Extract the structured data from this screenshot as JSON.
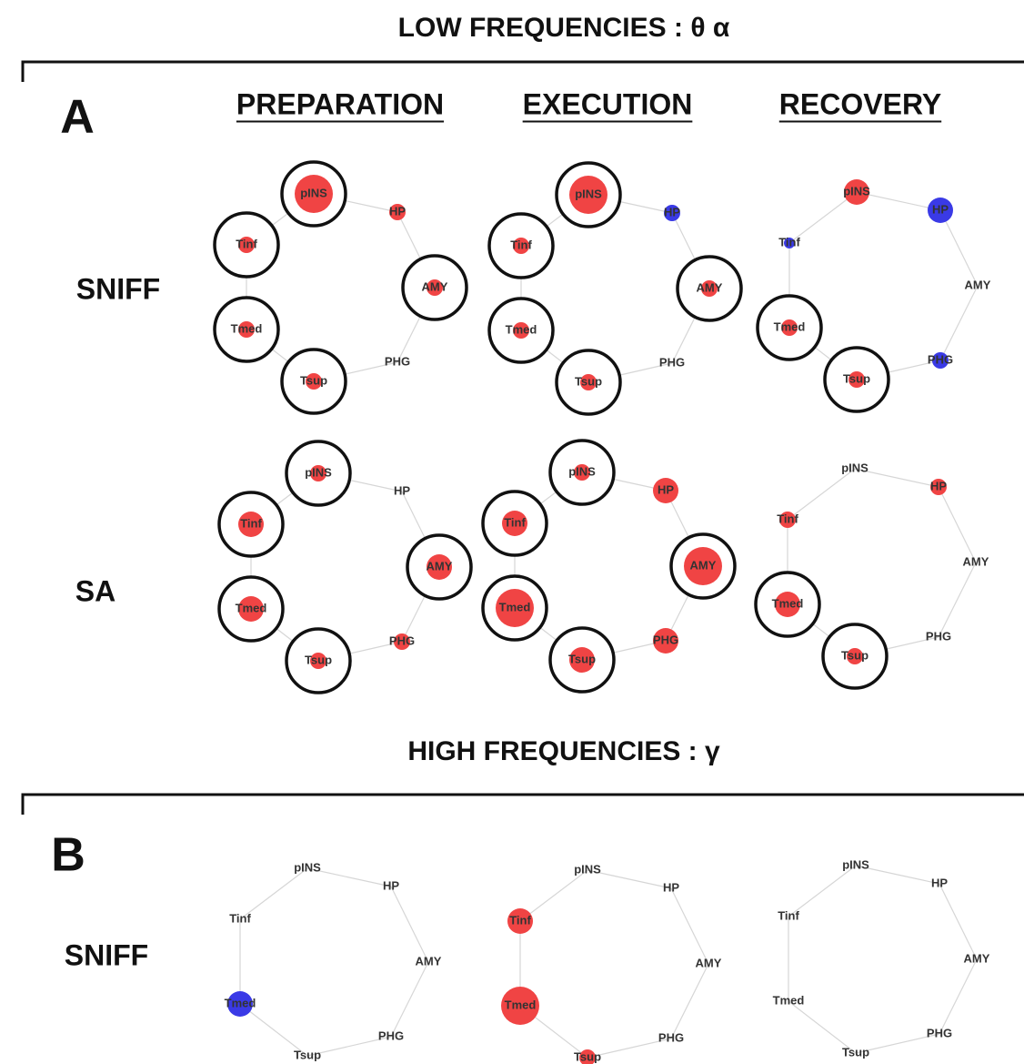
{
  "sections": [
    {
      "title": "LOW FREQUENCIES : θ α",
      "letter": "A",
      "columns": [
        "PREPARATION",
        "EXECUTION",
        "RECOVERY"
      ],
      "rows": [
        {
          "label": "SNIFF",
          "graphs": [
            {
              "nodes": [
                {
                  "label": "pINS",
                  "color": "red",
                  "size": "large",
                  "ring": true
                },
                {
                  "label": "HP",
                  "color": "red",
                  "size": "small"
                },
                {
                  "label": "AMY",
                  "color": "red",
                  "size": "small",
                  "ring": true
                },
                {
                  "label": "PHG"
                },
                {
                  "label": "Tsup",
                  "color": "red",
                  "size": "small",
                  "ring": true
                },
                {
                  "label": "Tmed",
                  "color": "red",
                  "size": "small",
                  "ring": true
                },
                {
                  "label": "Tinf",
                  "color": "red",
                  "size": "small",
                  "ring": true
                }
              ]
            },
            {
              "nodes": [
                {
                  "label": "pINS",
                  "color": "red",
                  "size": "large",
                  "ring": true
                },
                {
                  "label": "HP",
                  "color": "blue",
                  "size": "small"
                },
                {
                  "label": "AMY",
                  "color": "red",
                  "size": "small",
                  "ring": true
                },
                {
                  "label": "PHG"
                },
                {
                  "label": "Tsup",
                  "color": "red",
                  "size": "small",
                  "ring": true
                },
                {
                  "label": "Tmed",
                  "color": "red",
                  "size": "small",
                  "ring": true
                },
                {
                  "label": "Tinf",
                  "color": "red",
                  "size": "small",
                  "ring": true
                }
              ]
            },
            {
              "nodes": [
                {
                  "label": "pINS",
                  "color": "red",
                  "size": "medium"
                },
                {
                  "label": "HP",
                  "color": "blue",
                  "size": "medium"
                },
                {
                  "label": "AMY"
                },
                {
                  "label": "PHG",
                  "color": "blue",
                  "size": "small"
                },
                {
                  "label": "Tsup",
                  "color": "red",
                  "size": "small",
                  "ring": true
                },
                {
                  "label": "Tmed",
                  "color": "red",
                  "size": "small",
                  "ring": true
                },
                {
                  "label": "Tinf",
                  "color": "blue",
                  "size": "tiny"
                }
              ]
            }
          ]
        },
        {
          "label": "SA",
          "graphs": [
            {
              "nodes": [
                {
                  "label": "pINS",
                  "color": "red",
                  "size": "small",
                  "ring": true
                },
                {
                  "label": "HP"
                },
                {
                  "label": "AMY",
                  "color": "red",
                  "size": "medium",
                  "ring": true
                },
                {
                  "label": "PHG",
                  "color": "red",
                  "size": "small"
                },
                {
                  "label": "Tsup",
                  "color": "red",
                  "size": "small",
                  "ring": true
                },
                {
                  "label": "Tmed",
                  "color": "red",
                  "size": "medium",
                  "ring": true
                },
                {
                  "label": "Tinf",
                  "color": "red",
                  "size": "medium",
                  "ring": true
                }
              ]
            },
            {
              "nodes": [
                {
                  "label": "pINS",
                  "color": "red",
                  "size": "small",
                  "ring": true
                },
                {
                  "label": "HP",
                  "color": "red",
                  "size": "medium"
                },
                {
                  "label": "AMY",
                  "color": "red",
                  "size": "large",
                  "ring": true
                },
                {
                  "label": "PHG",
                  "color": "red",
                  "size": "medium"
                },
                {
                  "label": "Tsup",
                  "color": "red",
                  "size": "medium",
                  "ring": true
                },
                {
                  "label": "Tmed",
                  "color": "red",
                  "size": "large",
                  "ring": true
                },
                {
                  "label": "Tinf",
                  "color": "red",
                  "size": "medium",
                  "ring": true
                }
              ]
            },
            {
              "nodes": [
                {
                  "label": "pINS"
                },
                {
                  "label": "HP",
                  "color": "red",
                  "size": "small"
                },
                {
                  "label": "AMY"
                },
                {
                  "label": "PHG"
                },
                {
                  "label": "Tsup",
                  "color": "red",
                  "size": "small",
                  "ring": true
                },
                {
                  "label": "Tmed",
                  "color": "red",
                  "size": "medium",
                  "ring": true
                },
                {
                  "label": "Tinf",
                  "color": "red",
                  "size": "small"
                }
              ]
            }
          ]
        }
      ]
    },
    {
      "title": "HIGH FREQUENCIES : γ",
      "letter": "B",
      "rows": [
        {
          "label": "SNIFF",
          "graphs": [
            {
              "nodes": [
                {
                  "label": "pINS"
                },
                {
                  "label": "HP"
                },
                {
                  "label": "AMY"
                },
                {
                  "label": "PHG"
                },
                {
                  "label": "Tsup"
                },
                {
                  "label": "Tmed",
                  "color": "blue",
                  "size": "medium"
                },
                {
                  "label": "Tinf"
                }
              ]
            },
            {
              "nodes": [
                {
                  "label": "pINS"
                },
                {
                  "label": "HP"
                },
                {
                  "label": "AMY"
                },
                {
                  "label": "PHG"
                },
                {
                  "label": "Tsup",
                  "color": "red",
                  "size": "small"
                },
                {
                  "label": "Tmed",
                  "color": "red",
                  "size": "large"
                },
                {
                  "label": "Tinf",
                  "color": "red",
                  "size": "medium"
                }
              ]
            },
            {
              "nodes": [
                {
                  "label": "pINS"
                },
                {
                  "label": "HP"
                },
                {
                  "label": "AMY"
                },
                {
                  "label": "PHG"
                },
                {
                  "label": "Tsup"
                },
                {
                  "label": "Tmed"
                },
                {
                  "label": "Tinf"
                }
              ]
            }
          ]
        }
      ]
    }
  ]
}
